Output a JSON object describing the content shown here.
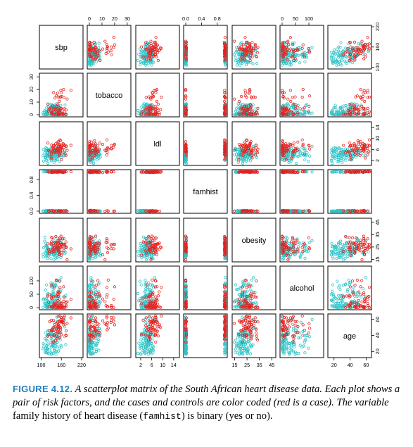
{
  "chart_data": {
    "type": "scatter",
    "subtype": "scatterplot-matrix",
    "variables": [
      "sbp",
      "tobacco",
      "ldl",
      "famhist",
      "obesity",
      "alcohol",
      "age"
    ],
    "class_colors": {
      "case": "#e8211e",
      "control": "#2ec4c8"
    },
    "variable_ranges": {
      "sbp": [
        101,
        218
      ],
      "tobacco": [
        0,
        31.2
      ],
      "ldl": [
        0.98,
        15.33
      ],
      "famhist": [
        0,
        1
      ],
      "obesity": [
        14.7,
        46.58
      ],
      "alcohol": [
        0,
        147.19
      ],
      "age": [
        15,
        64
      ]
    },
    "axis_ticks": {
      "top": [
        {
          "col": 1,
          "ticks": [
            "0",
            "10",
            "20",
            "30"
          ],
          "values": [
            0,
            10,
            20,
            30
          ]
        },
        {
          "col": 3,
          "ticks": [
            "0.0",
            "0.4",
            "0.8"
          ],
          "values": [
            0,
            0.4,
            0.8
          ]
        },
        {
          "col": 5,
          "ticks": [
            "0",
            "50",
            "100"
          ],
          "values": [
            0,
            50,
            100
          ]
        }
      ],
      "bottom": [
        {
          "col": 0,
          "ticks": [
            "100",
            "160",
            "220"
          ],
          "values": [
            100,
            160,
            220
          ]
        },
        {
          "col": 2,
          "ticks": [
            "2",
            "6",
            "10",
            "14"
          ],
          "values": [
            2,
            6,
            10,
            14
          ]
        },
        {
          "col": 4,
          "ticks": [
            "15",
            "25",
            "35",
            "45"
          ],
          "values": [
            15,
            25,
            35,
            45
          ]
        },
        {
          "col": 6,
          "ticks": [
            "20",
            "40",
            "60"
          ],
          "values": [
            20,
            40,
            60
          ]
        }
      ],
      "left": [
        {
          "row": 1,
          "ticks": [
            "0",
            "10",
            "20",
            "30"
          ],
          "values": [
            0,
            10,
            20,
            30
          ]
        },
        {
          "row": 3,
          "ticks": [
            "0.0",
            "0.4",
            "0.8"
          ],
          "values": [
            0,
            0.4,
            0.8
          ]
        },
        {
          "row": 5,
          "ticks": [
            "0",
            "50",
            "100"
          ],
          "values": [
            0,
            50,
            100
          ]
        }
      ],
      "right": [
        {
          "row": 0,
          "ticks": [
            "100",
            "160",
            "220"
          ],
          "values": [
            100,
            160,
            220
          ]
        },
        {
          "row": 2,
          "ticks": [
            "2",
            "6",
            "10",
            "14"
          ],
          "values": [
            2,
            6,
            10,
            14
          ]
        },
        {
          "row": 4,
          "ticks": [
            "15",
            "25",
            "35",
            "45"
          ],
          "values": [
            15,
            25,
            35,
            45
          ]
        },
        {
          "row": 6,
          "ticks": [
            "20",
            "40",
            "60"
          ],
          "values": [
            20,
            40,
            60
          ]
        }
      ]
    },
    "note": "off-diagonal panels show pairwise scatter of every variable pair, cases in red and controls in cyan"
  },
  "caption": {
    "figure_label": "FIGURE 4.12.",
    "text_1": " A scatterplot matrix of the South African heart disease data. Each plot shows a pair of risk factors, and the cases and controls are color coded (red is a case). The variable ",
    "text_2": "family history of heart disease",
    "text_3": " (",
    "code": "famhist",
    "text_4": ") is binary (yes or no)."
  }
}
